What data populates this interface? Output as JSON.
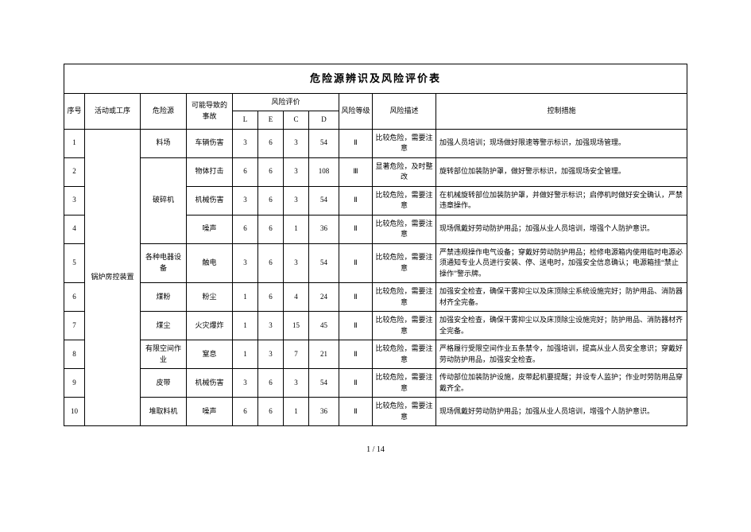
{
  "doc": {
    "title": "危险源辨识及风险评价表",
    "page_label": "1 / 14"
  },
  "headers": {
    "seq": "序号",
    "activity": "活动或工序",
    "source": "危险源",
    "accident": "可能导致的事故",
    "eval": "风险评价",
    "L": "L",
    "E": "E",
    "C": "C",
    "D": "D",
    "level": "风险等级",
    "desc": "风险描述",
    "measure": "控制措施"
  },
  "activity_span_label": "锅炉房控装置",
  "rows": [
    {
      "seq": "1",
      "src": "料场",
      "acc": "车辆伤害",
      "L": "3",
      "E": "6",
      "C": "3",
      "D": "54",
      "lvl": "Ⅱ",
      "desc": "比较危险，需要注意",
      "meas": "加强人员培训；现场做好限速等警示标识，加强现场管理。"
    },
    {
      "seq": "2",
      "src": "",
      "acc": "物体打击",
      "L": "6",
      "E": "6",
      "C": "3",
      "D": "108",
      "lvl": "Ⅲ",
      "desc": "显著危险，及时整改",
      "meas": "旋转部位加装防护罩，做好警示标识，加强现场安全管理。"
    },
    {
      "seq": "3",
      "src": "破碎机",
      "acc": "机械伤害",
      "L": "3",
      "E": "6",
      "C": "3",
      "D": "54",
      "lvl": "Ⅱ",
      "desc": "比较危险，需要注意",
      "meas": "在机械旋转部位加装防护罩，并做好警示标识；启停机时做好安全确认，严禁违章操作。"
    },
    {
      "seq": "4",
      "src": "",
      "acc": "噪声",
      "L": "6",
      "E": "6",
      "C": "1",
      "D": "36",
      "lvl": "Ⅱ",
      "desc": "比较危险，需要注意",
      "meas": "现场佩戴好劳动防护用品；加强从业人员培训，增强个人防护意识。"
    },
    {
      "seq": "5",
      "src": "各种电器设备",
      "acc": "触电",
      "L": "3",
      "E": "6",
      "C": "3",
      "D": "54",
      "lvl": "Ⅱ",
      "desc": "比较危险，需要注意",
      "meas": "严禁违规操作电气设备；穿戴好劳动防护用品；检修电源箱内使用临时电源必须通知专业人员进行安装、停、送电时，加强安全信息确认；电源箱挂“禁止操作”警示牌。"
    },
    {
      "seq": "6",
      "src": "煤粉",
      "acc": "粉尘",
      "L": "1",
      "E": "6",
      "C": "4",
      "D": "24",
      "lvl": "Ⅱ",
      "desc": "比较危险，需要注意",
      "meas": "加强安全检查，确保干雾抑尘以及床顶除尘系统设施完好；防护用品、消防器材齐全完备。"
    },
    {
      "seq": "7",
      "src": "煤尘",
      "acc": "火灾爆炸",
      "L": "1",
      "E": "3",
      "C": "15",
      "D": "45",
      "lvl": "Ⅱ",
      "desc": "比较危险，需要注意",
      "meas": "加强安全检查，确保干雾抑尘以及床顶除尘设施完好；防护用品、消防器材齐全完备。"
    },
    {
      "seq": "8",
      "src": "有限空间作业",
      "acc": "窒息",
      "L": "1",
      "E": "3",
      "C": "7",
      "D": "21",
      "lvl": "Ⅱ",
      "desc": "比较危险，需要注意",
      "meas": "严格履行受限空间作业五条禁令，加强培训，提高从业人员安全意识；穿戴好劳动防护用品，加强安全检查。"
    },
    {
      "seq": "9",
      "src": "皮带",
      "acc": "机械伤害",
      "L": "3",
      "E": "6",
      "C": "3",
      "D": "54",
      "lvl": "Ⅱ",
      "desc": "比较危险，需要注意",
      "meas": "传动部位加装防护设施，皮带起机要提醒；并设专人监护；作业时劳防用品穿戴齐全。"
    },
    {
      "seq": "10",
      "src": "堆取料机",
      "acc": "噪声",
      "L": "6",
      "E": "6",
      "C": "1",
      "D": "36",
      "lvl": "Ⅱ",
      "desc": "比较危险，需要注意",
      "meas": "现场佩戴好劳动防护用品；加强从业人员培训，增强个人防护意识。"
    }
  ]
}
